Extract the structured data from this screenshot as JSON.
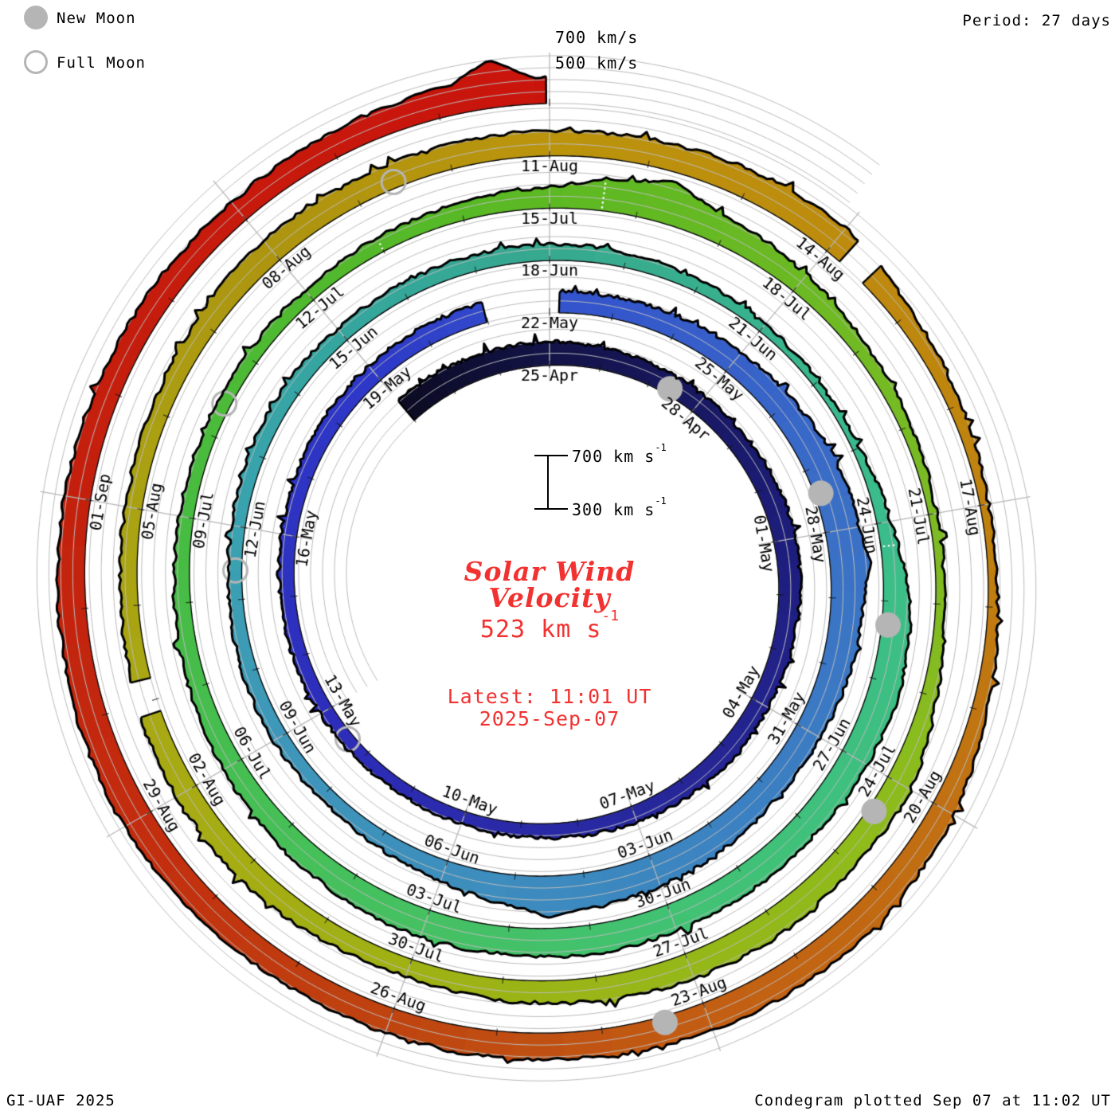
{
  "legend": {
    "items": [
      {
        "label": "New Moon",
        "style": "filled"
      },
      {
        "label": "Full Moon",
        "style": "open"
      }
    ]
  },
  "header": {
    "period_label": "Period: 27 days",
    "scale_700": "700 km/s",
    "scale_500": "500 km/s"
  },
  "center": {
    "scale_top": "700 km s",
    "scale_top_exp": "-1",
    "scale_bottom": "300 km s",
    "scale_bottom_exp": "-1",
    "title_line1": "Solar Wind",
    "title_line2": "Velocity",
    "value": "523 km s",
    "value_exp": "-1",
    "latest_line1": "Latest: 11:01 UT",
    "latest_line2": "2025-Sep-07",
    "text_color": "#f23230"
  },
  "footer": {
    "left": "GI-UAF 2025",
    "right": "Condegram plotted Sep 07 at 11:02 UT"
  },
  "chart_data": {
    "type": "spiral-condegram",
    "title": "Solar Wind Velocity",
    "units": "km/s",
    "period_days": 27,
    "start_date": "2025-04-22",
    "end_date": "2025-09-07",
    "latest": {
      "velocity_km_s": 523,
      "time": "11:01 UT",
      "date": "2025-Sep-07"
    },
    "axis_range_km_s": [
      300,
      700
    ],
    "gridlines_km_s": [
      300,
      400,
      500,
      600,
      700
    ],
    "spoke_step_days": 3,
    "ring_step_days": 27,
    "first_label_day": 3,
    "spokes": [
      {
        "angle": 0,
        "labels": [
          "25-Apr",
          "22-May",
          "18-Jun",
          "15-Jul",
          "11-Aug"
        ]
      },
      {
        "angle": 40,
        "labels": [
          "28-Apr",
          "25-May",
          "21-Jun",
          "18-Jul",
          "14-Aug"
        ]
      },
      {
        "angle": 80,
        "labels": [
          "01-May",
          "28-May",
          "24-Jun",
          "21-Jul",
          "17-Aug"
        ]
      },
      {
        "angle": 120,
        "labels": [
          "04-May",
          "31-May",
          "27-Jun",
          "24-Jul",
          "20-Aug"
        ]
      },
      {
        "angle": 160,
        "labels": [
          "07-May",
          "03-Jun",
          "30-Jun",
          "27-Jul",
          "23-Aug"
        ]
      },
      {
        "angle": 200,
        "labels": [
          "10-May",
          "06-Jun",
          "03-Jul",
          "30-Jul",
          "26-Aug"
        ]
      },
      {
        "angle": 240,
        "labels": [
          "13-May",
          "09-Jun",
          "06-Jul",
          "02-Aug",
          "29-Aug"
        ]
      },
      {
        "angle": 280,
        "labels": [
          "16-May",
          "12-Jun",
          "09-Jul",
          "05-Aug",
          "01-Sep"
        ]
      },
      {
        "angle": 320,
        "labels": [
          "19-May",
          "15-Jun",
          "12-Jul",
          "08-Aug"
        ]
      }
    ],
    "daily_km_s": [
      515,
      508,
      500,
      495,
      485,
      472,
      465,
      470,
      480,
      490,
      478,
      465,
      455,
      470,
      455,
      440,
      425,
      415,
      408,
      402,
      405,
      415,
      420,
      425,
      430,
      438,
      448,
      455,
      462,
      470,
      480,
      480,
      490,
      500,
      530,
      570,
      590,
      575,
      550,
      530,
      520,
      545,
      570,
      600,
      560,
      480,
      440,
      420,
      430,
      425,
      415,
      420,
      430,
      435,
      425,
      430,
      440,
      435,
      425,
      400,
      375,
      355,
      360,
      420,
      520,
      560,
      540,
      520,
      530,
      530,
      545,
      530,
      540,
      520,
      500,
      470,
      450,
      430,
      420,
      410,
      405,
      410,
      425,
      450,
      480,
      600,
      540,
      480,
      420,
      390,
      365,
      370,
      430,
      520,
      510,
      530,
      520,
      500,
      480,
      450,
      475,
      500,
      490,
      470,
      445,
      440,
      450,
      480,
      510,
      505,
      505,
      510,
      520,
      540,
      550,
      450,
      410,
      370,
      380,
      430,
      500,
      540,
      545,
      540,
      530,
      520,
      515,
      510,
      530,
      555,
      545,
      530,
      520,
      505,
      495,
      490,
      505,
      540,
      523
    ],
    "spikes": [
      {
        "day": 36.5,
        "v": 645
      },
      {
        "day": 43.5,
        "v": 650
      },
      {
        "day": 85.3,
        "v": 665
      },
      {
        "day": 137.5,
        "v": 700
      }
    ],
    "data_gaps": [
      {
        "start": 29.0,
        "len": 1.15
      },
      {
        "start": 102.9,
        "len": 0.3
      },
      {
        "start": 114.2,
        "len": 0.25
      }
    ],
    "interp_marks": [
      63.3,
      82.0,
      84.6
    ],
    "color_stops": [
      [
        0,
        "#0b0b22"
      ],
      [
        3,
        "#131348"
      ],
      [
        9,
        "#1d1d7c"
      ],
      [
        15,
        "#28289e"
      ],
      [
        21,
        "#2d2dbb"
      ],
      [
        27,
        "#2e38c8"
      ],
      [
        30,
        "#3352cd"
      ],
      [
        36,
        "#3a70c6"
      ],
      [
        42,
        "#3c86c0"
      ],
      [
        48,
        "#3e97ba"
      ],
      [
        51,
        "#3aa2b0"
      ],
      [
        54,
        "#35a69e"
      ],
      [
        57,
        "#36a98f"
      ],
      [
        63,
        "#3bbd8c"
      ],
      [
        69,
        "#41c273"
      ],
      [
        72,
        "#45c162"
      ],
      [
        78,
        "#47bc41"
      ],
      [
        81,
        "#50b92e"
      ],
      [
        84,
        "#5cb922"
      ],
      [
        90,
        "#7cba24"
      ],
      [
        93,
        "#8cbc1c"
      ],
      [
        99,
        "#9fb214"
      ],
      [
        102,
        "#a8ab13"
      ],
      [
        105,
        "#aaa212"
      ],
      [
        108,
        "#ad9510"
      ],
      [
        111,
        "#bb940c"
      ],
      [
        117,
        "#c0820f"
      ],
      [
        120,
        "#c17012"
      ],
      [
        123,
        "#c25e13"
      ],
      [
        126,
        "#bf4410"
      ],
      [
        129,
        "#c32c0e"
      ],
      [
        132,
        "#c4200d"
      ],
      [
        138,
        "#c9140c"
      ]
    ],
    "new_moons": [
      {
        "date": "2025-04-27",
        "day": 5.4
      },
      {
        "date": "2025-05-27",
        "day": 35.4
      },
      {
        "date": "2025-06-25",
        "day": 64.3
      },
      {
        "date": "2025-07-24",
        "day": 93.4
      },
      {
        "date": "2025-08-23",
        "day": 123.4
      }
    ],
    "full_moons": [
      {
        "date": "2025-05-12",
        "day": 20.4
      },
      {
        "date": "2025-06-11",
        "day": 50.4
      },
      {
        "date": "2025-07-10",
        "day": 79.4
      },
      {
        "date": "2025-08-09",
        "day": 109.4
      }
    ],
    "moon_color": "#b5b5b5",
    "grid_color": "#bcbcbc"
  }
}
